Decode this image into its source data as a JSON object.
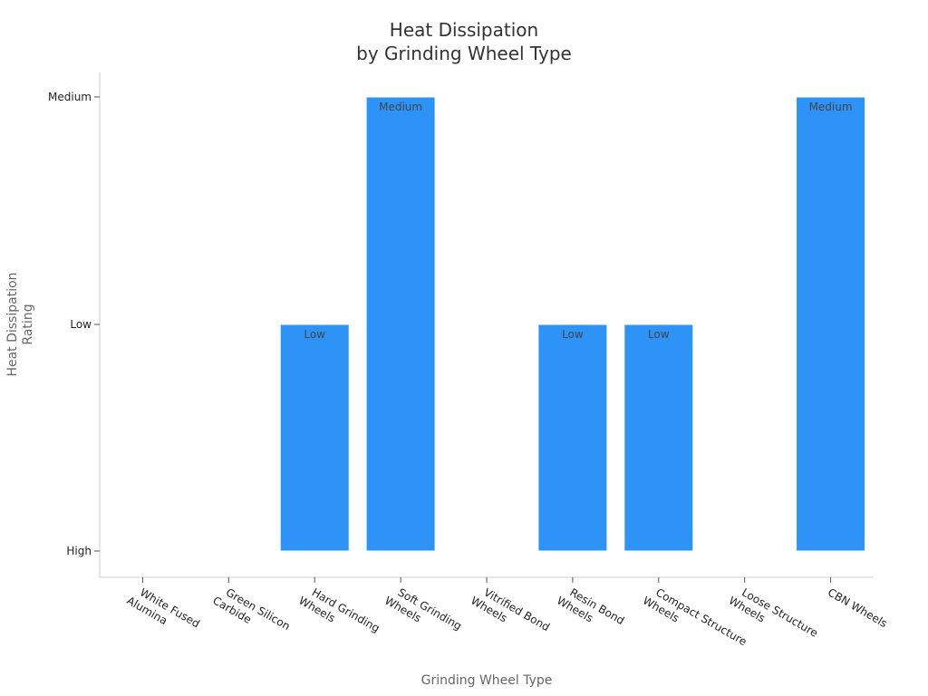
{
  "chart_data": {
    "type": "bar",
    "title_lines": [
      "Heat Dissipation",
      "by Grinding Wheel Type"
    ],
    "xlabel": "Grinding Wheel Type",
    "ylabel_lines": [
      "Heat Dissipation",
      "Rating"
    ],
    "y_levels": [
      "High",
      "Low",
      "Medium"
    ],
    "categories": [
      [
        "White Fused",
        "Alumina"
      ],
      [
        "Green Silicon",
        "Carbide"
      ],
      [
        "Hard Grinding",
        "Wheels"
      ],
      [
        "Soft Grinding",
        "Wheels"
      ],
      [
        "Vitrified Bond",
        "Wheels"
      ],
      [
        "Resin Bond",
        "Wheels"
      ],
      [
        "Compact Structure",
        "Wheels"
      ],
      [
        "Loose Structure",
        "Wheels"
      ],
      [
        "CBN Wheels"
      ]
    ],
    "values": [
      null,
      null,
      "Low",
      "Medium",
      null,
      "Low",
      "Low",
      null,
      "Medium"
    ],
    "grid": false,
    "legend": "none",
    "colors": {
      "bar": "#2e93f6"
    }
  }
}
